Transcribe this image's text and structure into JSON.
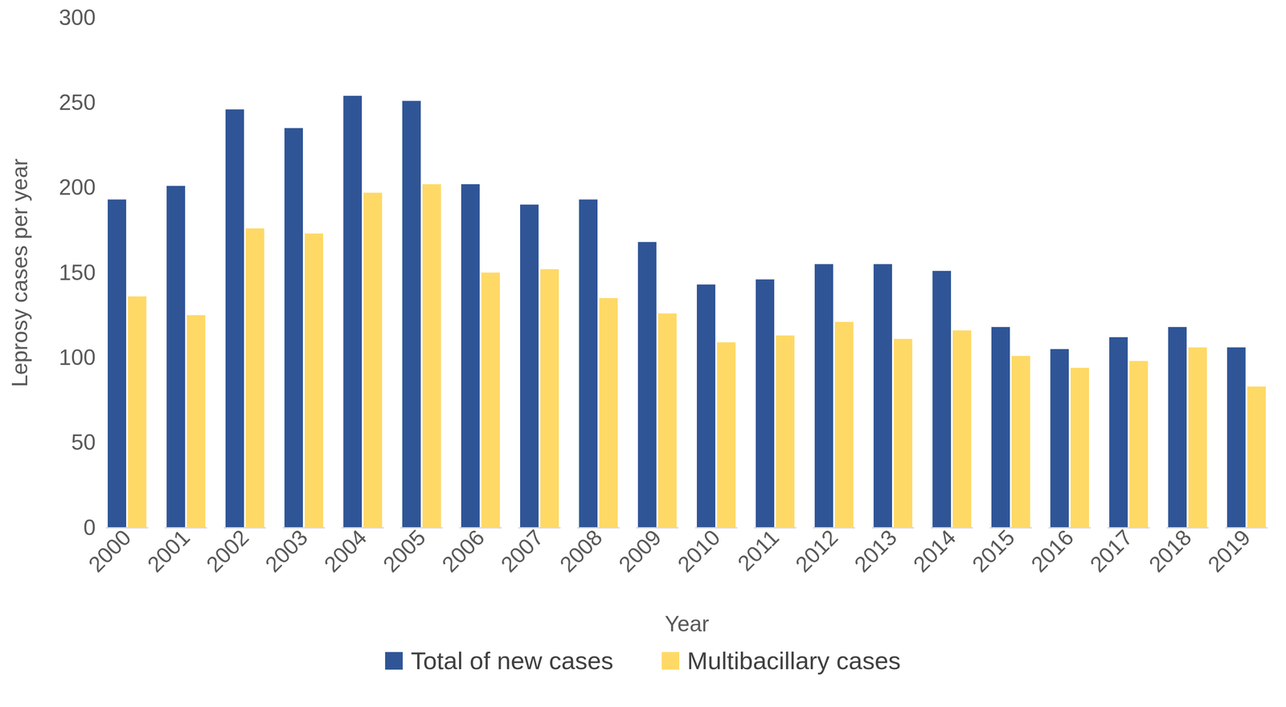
{
  "chart_data": {
    "type": "bar",
    "x_label": "Year",
    "y_label": "Leprosy cases per year",
    "categories": [
      "2000",
      "2001",
      "2002",
      "2003",
      "2004",
      "2005",
      "2006",
      "2007",
      "2008",
      "2009",
      "2010",
      "2011",
      "2012",
      "2013",
      "2014",
      "2015",
      "2016",
      "2017",
      "2018",
      "2019"
    ],
    "series": [
      {
        "name": "Total of new cases",
        "color": "#2f5597",
        "values": [
          193,
          201,
          246,
          235,
          254,
          251,
          202,
          190,
          193,
          168,
          143,
          146,
          155,
          155,
          151,
          118,
          105,
          112,
          118,
          106
        ]
      },
      {
        "name": "Multibacillary cases",
        "color": "#ffd966",
        "values": [
          136,
          125,
          176,
          173,
          197,
          202,
          150,
          152,
          135,
          126,
          109,
          113,
          121,
          111,
          116,
          101,
          94,
          98,
          106,
          83
        ]
      }
    ],
    "ylim": [
      0,
      300
    ],
    "yticks": [
      0,
      50,
      100,
      150,
      200,
      250,
      300
    ],
    "grid": false,
    "legend": "bottom"
  }
}
